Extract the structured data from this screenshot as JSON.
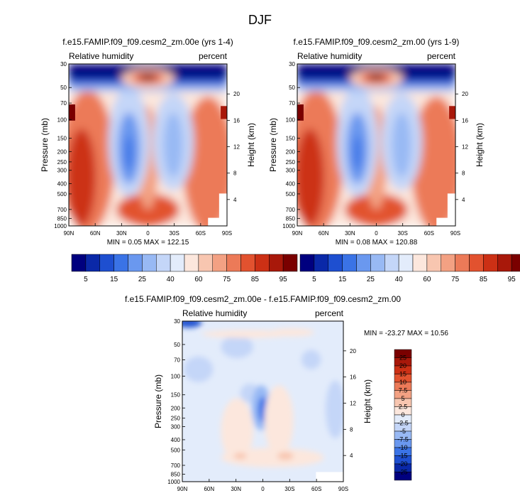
{
  "figure": {
    "title": "DJF",
    "colors": {
      "colorbar_levels": [
        "#00007f",
        "#0a28a8",
        "#1e4fd0",
        "#3a73e6",
        "#6a98ef",
        "#98b9f4",
        "#c4d6f8",
        "#e3ecfb",
        "#fce7dd",
        "#f8c6b0",
        "#f3a183",
        "#ec7a58",
        "#e2522f",
        "#cc3015",
        "#a8180a",
        "#7a0000"
      ],
      "diff_levels": [
        "#00007f",
        "#0a28a8",
        "#1e4fd0",
        "#3a73e6",
        "#6a98ef",
        "#98b9f4",
        "#c4d6f8",
        "#e3ecfb",
        "#fce7dd",
        "#f8c6b0",
        "#f3a183",
        "#ec7a58",
        "#e2522f",
        "#cc3015",
        "#a8180a",
        "#7a0000"
      ]
    }
  },
  "chart_data": [
    {
      "type": "heatmap",
      "title": "f.e15.FAMIP.f09_f09.cesm2_zm.00e (yrs 1-4)",
      "left_label": "Relative humidity",
      "right_label": "percent",
      "ylabel": "Pressure (mb)",
      "y2label": "Height (km)",
      "x_ticks": [
        "90N",
        "60N",
        "30N",
        "0",
        "30S",
        "60S",
        "90S"
      ],
      "x_values": [
        90,
        60,
        30,
        0,
        -30,
        -60,
        -90
      ],
      "y_ticks": [
        "30",
        "50",
        "70",
        "100",
        "150",
        "200",
        "250",
        "300",
        "400",
        "500",
        "700",
        "850",
        "1000"
      ],
      "y_values": [
        30,
        50,
        70,
        100,
        150,
        200,
        250,
        300,
        400,
        500,
        700,
        850,
        1000
      ],
      "ylim": [
        30,
        1000
      ],
      "y_scale": "log",
      "y2_ticks": [
        "20",
        "16",
        "12",
        "8",
        "4"
      ],
      "y2_values": [
        20,
        16,
        12,
        8,
        4
      ],
      "stats": "MIN =  0.05  MAX = 122.15",
      "colorbar_labels": [
        "5",
        "15",
        "25",
        "40",
        "60",
        "75",
        "85",
        "95"
      ],
      "colorbar_levels": [
        5,
        10,
        15,
        20,
        25,
        30,
        35,
        40,
        50,
        60,
        65,
        75,
        80,
        85,
        90,
        95
      ]
    },
    {
      "type": "heatmap",
      "title": "f.e15.FAMIP.f09_f09.cesm2_zm.00 (yrs 1-9)",
      "left_label": "Relative humidity",
      "right_label": "percent",
      "ylabel": "Pressure (mb)",
      "y2label": "Height (km)",
      "x_ticks": [
        "90N",
        "60N",
        "30N",
        "0",
        "30S",
        "60S",
        "90S"
      ],
      "x_values": [
        90,
        60,
        30,
        0,
        -30,
        -60,
        -90
      ],
      "y_ticks": [
        "30",
        "50",
        "70",
        "100",
        "150",
        "200",
        "250",
        "300",
        "400",
        "500",
        "700",
        "850",
        "1000"
      ],
      "y_values": [
        30,
        50,
        70,
        100,
        150,
        200,
        250,
        300,
        400,
        500,
        700,
        850,
        1000
      ],
      "ylim": [
        30,
        1000
      ],
      "y_scale": "log",
      "y2_ticks": [
        "20",
        "16",
        "12",
        "8",
        "4"
      ],
      "y2_values": [
        20,
        16,
        12,
        8,
        4
      ],
      "stats": "MIN =  0.08  MAX = 120.88",
      "colorbar_labels": [
        "5",
        "15",
        "25",
        "40",
        "60",
        "75",
        "85",
        "95"
      ],
      "colorbar_levels": [
        5,
        10,
        15,
        20,
        25,
        30,
        35,
        40,
        50,
        60,
        65,
        75,
        80,
        85,
        90,
        95
      ]
    },
    {
      "type": "heatmap",
      "title": "f.e15.FAMIP.f09_f09.cesm2_zm.00e - f.e15.FAMIP.f09_f09.cesm2_zm.00",
      "left_label": "Relative humidity",
      "right_label": "percent",
      "ylabel": "Pressure (mb)",
      "y2label": "Height (km)",
      "x_ticks": [
        "90N",
        "60N",
        "30N",
        "0",
        "30S",
        "60S",
        "90S"
      ],
      "x_values": [
        90,
        60,
        30,
        0,
        -30,
        -60,
        -90
      ],
      "y_ticks": [
        "30",
        "50",
        "70",
        "100",
        "150",
        "200",
        "250",
        "300",
        "400",
        "500",
        "700",
        "850",
        "1000"
      ],
      "y_values": [
        30,
        50,
        70,
        100,
        150,
        200,
        250,
        300,
        400,
        500,
        700,
        850,
        1000
      ],
      "ylim": [
        30,
        1000
      ],
      "y_scale": "log",
      "y2_ticks": [
        "20",
        "16",
        "12",
        "8",
        "4"
      ],
      "y2_values": [
        20,
        16,
        12,
        8,
        4
      ],
      "stats": "MIN = -23.27  MAX = 10.56",
      "colorbar_labels": [
        "25",
        "20",
        "15",
        "10",
        "7.5",
        "5",
        "2.5",
        "0",
        "-2.5",
        "-5",
        "-7.5",
        "-10",
        "-15",
        "-20",
        "-25"
      ],
      "colorbar_levels": [
        25,
        20,
        15,
        10,
        7.5,
        5,
        2.5,
        0,
        -2.5,
        -5,
        -7.5,
        -10,
        -15,
        -20,
        -25
      ]
    }
  ]
}
